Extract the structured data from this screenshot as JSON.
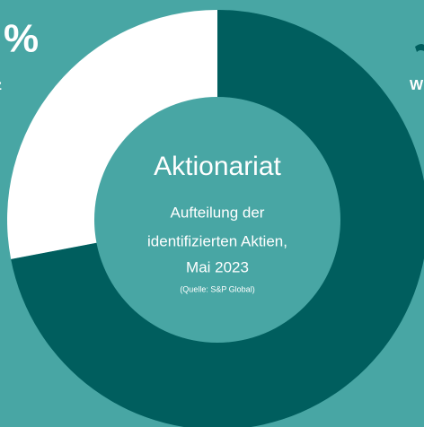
{
  "chart_data": {
    "type": "donut",
    "title": "Aktionariat",
    "subtitle_lines": [
      "Aufteilung der",
      "identifizierten Aktien,",
      "Mai 2023"
    ],
    "source": "(Quelle: S&P Global)",
    "categories": [
      null,
      null
    ],
    "values": [
      72,
      28
    ],
    "colors": [
      "#005e5e",
      "#ffffff"
    ],
    "fragments": [
      "%",
      "z",
      "W"
    ]
  }
}
